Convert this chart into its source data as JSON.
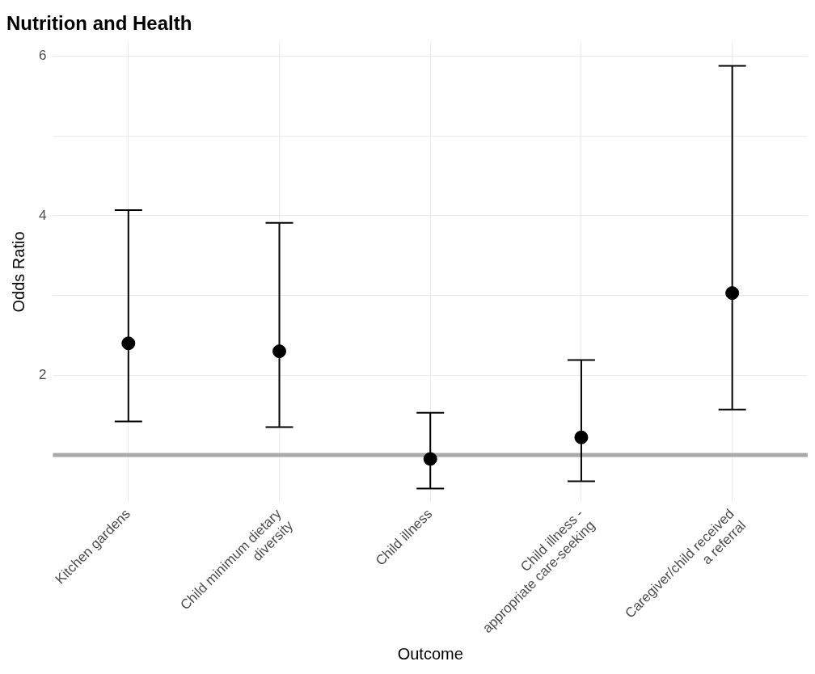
{
  "chart_data": {
    "type": "scatter",
    "title": "Nutrition and Health",
    "xlabel": "Outcome",
    "ylabel": "Odds Ratio",
    "categories": [
      "Kitchen gardens",
      "Child minimum dietary diversity",
      "Child illness",
      "Child illness - appropriate care-seeking",
      "Caregiver/child received a referral"
    ],
    "series": [
      {
        "color": "#000000",
        "values": [
          2.4,
          2.3,
          0.95,
          1.22,
          3.03
        ],
        "errors": [
          [
            1.42,
            4.07
          ],
          [
            1.35,
            3.91
          ],
          [
            0.58,
            1.53
          ],
          [
            0.67,
            2.19
          ],
          [
            1.57,
            5.88
          ]
        ]
      }
    ],
    "ylim": [
      0.42,
      6.17
    ],
    "yticks": [
      {
        "value": 1,
        "label": null
      },
      2,
      {
        "value": 3,
        "label": null
      },
      4,
      {
        "value": 5,
        "label": null
      },
      6
    ],
    "ref_lines": [
      {
        "axis": "y",
        "value": 1,
        "color": "#a9a9a9"
      }
    ],
    "grid": true,
    "marker": "circle"
  }
}
